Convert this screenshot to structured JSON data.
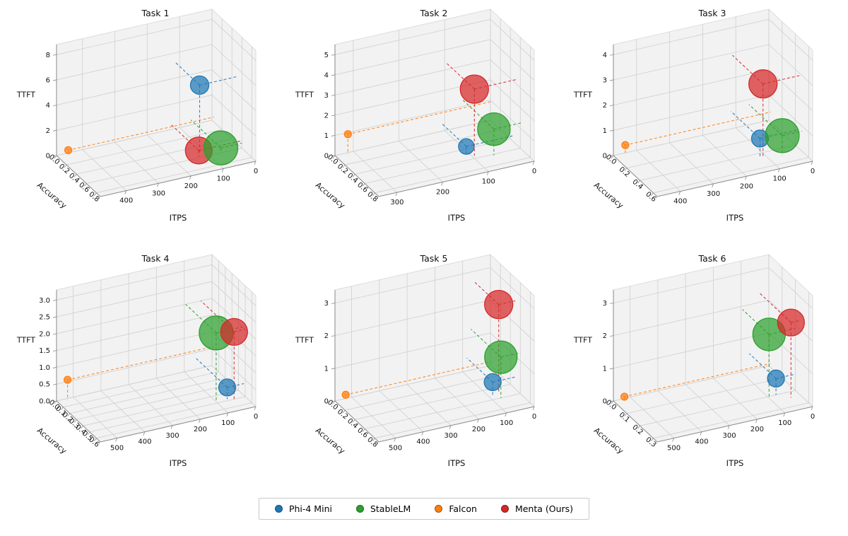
{
  "figure": {
    "background": "#ffffff"
  },
  "colors": {
    "Phi-4 Mini": "#1f77b4",
    "StableLM": "#2ca02c",
    "Falcon": "#ff7f0e",
    "Menta (Ours)": "#d62728"
  },
  "legend": {
    "items": [
      {
        "label": "Phi-4 Mini",
        "color": "#1f77b4"
      },
      {
        "label": "StableLM",
        "color": "#2ca02c"
      },
      {
        "label": "Falcon",
        "color": "#ff7f0e"
      },
      {
        "label": "Menta (Ours)",
        "color": "#d62728"
      }
    ]
  },
  "chart_data": [
    {
      "type": "scatter",
      "projection": "3d-bubble",
      "title": "Task 1",
      "xlabel": "ITPS",
      "ylabel": "Accuracy",
      "zlabel": "TTFT",
      "itps": {
        "values": [
          0,
          100,
          200,
          300,
          400
        ],
        "labels": [
          "0",
          "100",
          "200",
          "300",
          "400"
        ],
        "max": 480
      },
      "acc": {
        "values": [
          0,
          0.2,
          0.4,
          0.6,
          0.8
        ],
        "labels": [
          "0.0",
          "0.2",
          "0.4",
          "0.6",
          "0.8"
        ],
        "max": 0.88
      },
      "ttft": {
        "values": [
          0,
          2,
          4,
          6,
          8
        ],
        "labels": [
          "0",
          "2",
          "4",
          "6",
          "8"
        ],
        "max": 8.8
      },
      "points": [
        {
          "series": "Falcon",
          "itps": 450,
          "accuracy": 0.04,
          "ttft": 0.4,
          "size": 5
        },
        {
          "series": "Phi-4 Mini",
          "itps": 115,
          "accuracy": 0.5,
          "ttft": 5.3,
          "size": 13
        },
        {
          "series": "Menta (Ours)",
          "itps": 130,
          "accuracy": 0.58,
          "ttft": 0.5,
          "size": 19
        },
        {
          "series": "StableLM",
          "itps": 65,
          "accuracy": 0.6,
          "ttft": 0.4,
          "size": 24
        }
      ]
    },
    {
      "type": "scatter",
      "projection": "3d-bubble",
      "title": "Task 2",
      "xlabel": "ITPS",
      "ylabel": "Accuracy",
      "zlabel": "TTFT",
      "itps": {
        "values": [
          0,
          100,
          200,
          300
        ],
        "labels": [
          "0",
          "100",
          "200",
          "300"
        ],
        "max": 340
      },
      "acc": {
        "values": [
          0,
          0.2,
          0.4,
          0.6,
          0.8
        ],
        "labels": [
          "0.0",
          "0.2",
          "0.4",
          "0.6",
          "0.8"
        ],
        "max": 0.88
      },
      "ttft": {
        "values": [
          0,
          1,
          2,
          3,
          4,
          5
        ],
        "labels": [
          "0",
          "1",
          "2",
          "3",
          "4",
          "5"
        ],
        "max": 5.5
      },
      "points": [
        {
          "series": "Falcon",
          "itps": 315,
          "accuracy": 0.03,
          "ttft": 1.0,
          "size": 5
        },
        {
          "series": "Phi-4 Mini",
          "itps": 105,
          "accuracy": 0.48,
          "ttft": 0.35,
          "size": 11
        },
        {
          "series": "StableLM",
          "itps": 60,
          "accuracy": 0.62,
          "ttft": 1.3,
          "size": 23
        },
        {
          "series": "Menta (Ours)",
          "itps": 95,
          "accuracy": 0.55,
          "ttft": 3.3,
          "size": 20
        }
      ]
    },
    {
      "type": "scatter",
      "projection": "3d-bubble",
      "title": "Task 3",
      "xlabel": "ITPS",
      "ylabel": "Accuracy",
      "zlabel": "TTFT",
      "itps": {
        "values": [
          0,
          100,
          200,
          300,
          400
        ],
        "labels": [
          "0",
          "100",
          "200",
          "300",
          "400"
        ],
        "max": 470
      },
      "acc": {
        "values": [
          0,
          0.2,
          0.4,
          0.6
        ],
        "labels": [
          "0.0",
          "0.2",
          "0.4",
          "0.6"
        ],
        "max": 0.66
      },
      "ttft": {
        "values": [
          0,
          1,
          2,
          3,
          4
        ],
        "labels": [
          "0",
          "1",
          "2",
          "3",
          "4"
        ],
        "max": 4.4
      },
      "points": [
        {
          "series": "Falcon",
          "itps": 440,
          "accuracy": 0.03,
          "ttft": 0.4,
          "size": 5
        },
        {
          "series": "Phi-4 Mini",
          "itps": 115,
          "accuracy": 0.44,
          "ttft": 0.7,
          "size": 12
        },
        {
          "series": "StableLM",
          "itps": 60,
          "accuracy": 0.5,
          "ttft": 0.8,
          "size": 24
        },
        {
          "series": "Menta (Ours)",
          "itps": 110,
          "accuracy": 0.46,
          "ttft": 2.9,
          "size": 20
        }
      ]
    },
    {
      "type": "scatter",
      "projection": "3d-bubble",
      "title": "Task 4",
      "xlabel": "ITPS",
      "ylabel": "Accuracy",
      "zlabel": "TTFT",
      "itps": {
        "values": [
          0,
          100,
          200,
          300,
          400,
          500
        ],
        "labels": [
          "0",
          "100",
          "200",
          "300",
          "400",
          "500"
        ],
        "max": 560
      },
      "acc": {
        "values": [
          0,
          0.1,
          0.2,
          0.3,
          0.4,
          0.5,
          0.6
        ],
        "labels": [
          "0.0",
          "0.1",
          "0.2",
          "0.3",
          "0.4",
          "0.5",
          "0.6"
        ],
        "max": 0.66
      },
      "ttft": {
        "values": [
          0,
          0.5,
          1,
          1.5,
          2,
          2.5,
          3
        ],
        "labels": [
          "0.0",
          "0.5",
          "1.0",
          "1.5",
          "2.0",
          "2.5",
          "3.0"
        ],
        "max": 3.3
      },
      "points": [
        {
          "series": "Falcon",
          "itps": 525,
          "accuracy": 0.02,
          "ttft": 0.6,
          "size": 5
        },
        {
          "series": "Phi-4 Mini",
          "itps": 60,
          "accuracy": 0.48,
          "ttft": 0.35,
          "size": 12
        },
        {
          "series": "StableLM",
          "itps": 95,
          "accuracy": 0.46,
          "ttft": 2.0,
          "size": 24
        },
        {
          "series": "Menta (Ours)",
          "itps": 40,
          "accuracy": 0.5,
          "ttft": 2.0,
          "size": 19
        }
      ]
    },
    {
      "type": "scatter",
      "projection": "3d-bubble",
      "title": "Task 5",
      "xlabel": "ITPS",
      "ylabel": "Accuracy",
      "zlabel": "TTFT",
      "itps": {
        "values": [
          0,
          100,
          200,
          300,
          400,
          500
        ],
        "labels": [
          "0",
          "100",
          "200",
          "300",
          "400",
          "500"
        ],
        "max": 560
      },
      "acc": {
        "values": [
          0,
          0.2,
          0.4,
          0.6,
          0.8
        ],
        "labels": [
          "0.0",
          "0.2",
          "0.4",
          "0.6",
          "0.8"
        ],
        "max": 0.88
      },
      "ttft": {
        "values": [
          0,
          1,
          2,
          3
        ],
        "labels": [
          "0",
          "1",
          "2",
          "3"
        ],
        "max": 3.4
      },
      "points": [
        {
          "series": "Falcon",
          "itps": 525,
          "accuracy": 0.02,
          "ttft": 0.15,
          "size": 5
        },
        {
          "series": "Phi-4 Mini",
          "itps": 85,
          "accuracy": 0.52,
          "ttft": 0.4,
          "size": 12
        },
        {
          "series": "StableLM",
          "itps": 70,
          "accuracy": 0.6,
          "ttft": 1.25,
          "size": 23
        },
        {
          "series": "Menta (Ours)",
          "itps": 60,
          "accuracy": 0.5,
          "ttft": 2.7,
          "size": 20
        }
      ]
    },
    {
      "type": "scatter",
      "projection": "3d-bubble",
      "title": "Task 6",
      "xlabel": "ITPS",
      "ylabel": "Accuracy",
      "zlabel": "TTFT",
      "itps": {
        "values": [
          0,
          100,
          200,
          300,
          400,
          500
        ],
        "labels": [
          "0",
          "100",
          "200",
          "300",
          "400",
          "500"
        ],
        "max": 560
      },
      "acc": {
        "values": [
          0,
          0.1,
          0.2,
          0.3
        ],
        "labels": [
          "0.0",
          "0.1",
          "0.2",
          "0.3"
        ],
        "max": 0.33
      },
      "ttft": {
        "values": [
          0,
          1,
          2,
          3
        ],
        "labels": [
          "0",
          "1",
          "2",
          "3"
        ],
        "max": 3.4
      },
      "points": [
        {
          "series": "Falcon",
          "itps": 525,
          "accuracy": 0.01,
          "ttft": 0.1,
          "size": 5
        },
        {
          "series": "Phi-4 Mini",
          "itps": 70,
          "accuracy": 0.2,
          "ttft": 0.5,
          "size": 12
        },
        {
          "series": "StableLM",
          "itps": 95,
          "accuracy": 0.2,
          "ttft": 1.9,
          "size": 23
        },
        {
          "series": "Menta (Ours)",
          "itps": 35,
          "accuracy": 0.24,
          "ttft": 2.3,
          "size": 19
        }
      ]
    }
  ],
  "style": {
    "pane_fill": "#f2f2f3",
    "pane_edge": "#d6d6d8",
    "grid_color": "#cfcfcf",
    "spine_color": "#8a8a8a",
    "tick_text_color": "#111111",
    "bubble_fill_opacity": 0.72
  }
}
